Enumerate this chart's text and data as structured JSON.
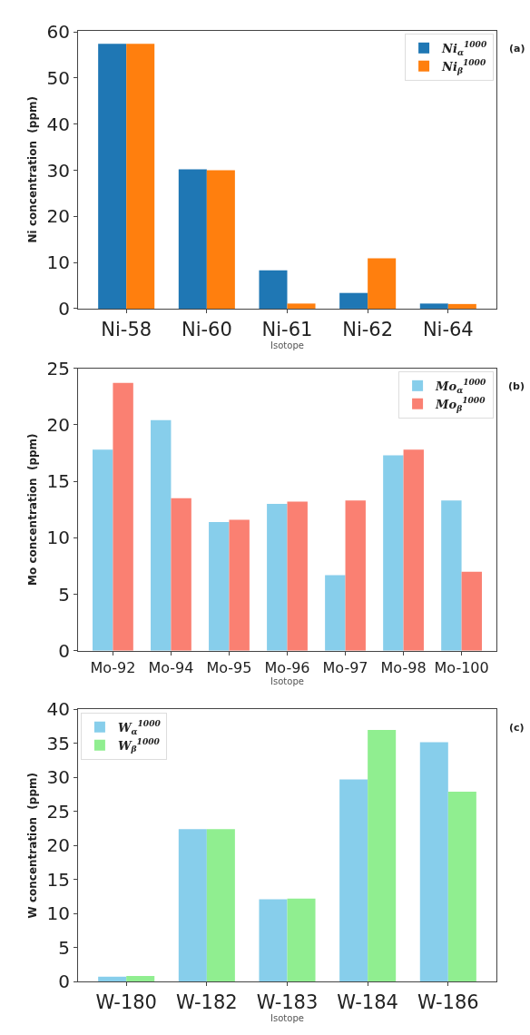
{
  "chart_data": [
    {
      "type": "bar",
      "xlabel": "Isotope",
      "ylabel": "Ni concentration  (ppm)",
      "annotations": [
        "(a)"
      ],
      "categories": [
        "Ni-58",
        "Ni-60",
        "Ni-61",
        "Ni-62",
        "Ni-64"
      ],
      "series": [
        {
          "name": "Ni$_{α}$$^{1000}$",
          "color": "#1f77b4",
          "values": [
            57.4,
            30.2,
            8.3,
            3.4,
            1.1
          ]
        },
        {
          "name": "Ni$_{β}$$^{1000}$",
          "color": "#ff7f0e",
          "values": [
            57.4,
            30.0,
            1.1,
            10.9,
            1.0
          ]
        }
      ],
      "ylim": [
        0,
        60.3
      ],
      "yticks": [
        0,
        10,
        20,
        30,
        40,
        50,
        60
      ],
      "legend": "top right"
    },
    {
      "type": "bar",
      "xlabel": "Isotope",
      "ylabel": "Mo concentration  (ppm)",
      "annotations": [
        "(b)"
      ],
      "categories": [
        "Mo-92",
        "Mo-94",
        "Mo-95",
        "Mo-96",
        "Mo-97",
        "Mo-98",
        "Mo-100"
      ],
      "series": [
        {
          "name": "Mo$_{α}$$^{1000}$",
          "color": "#87ceeb",
          "values": [
            17.8,
            20.4,
            11.4,
            13.0,
            6.7,
            17.3,
            13.3
          ]
        },
        {
          "name": "Mo$_{β}$$^{1000}$",
          "color": "#fa8072",
          "values": [
            23.7,
            13.5,
            11.6,
            13.2,
            13.3,
            17.8,
            7.0
          ]
        }
      ],
      "ylim": [
        0,
        25
      ],
      "yticks": [
        0,
        5,
        10,
        15,
        20,
        25
      ],
      "legend": "top right"
    },
    {
      "type": "bar",
      "xlabel": "Isotope",
      "ylabel": "W concentration  (ppm)",
      "annotations": [
        "(c)"
      ],
      "categories": [
        "W-180",
        "W-182",
        "W-183",
        "W-184",
        "W-186"
      ],
      "series": [
        {
          "name": "W$_{α}$$^{1000}$",
          "color": "#87ceeb",
          "values": [
            0.7,
            22.4,
            12.1,
            29.7,
            35.2
          ]
        },
        {
          "name": "W$_{β}$$^{1000}$",
          "color": "#90ee90",
          "values": [
            0.8,
            22.4,
            12.2,
            37.0,
            27.9
          ]
        }
      ],
      "ylim": [
        0,
        40
      ],
      "yticks": [
        0,
        5,
        10,
        15,
        20,
        25,
        30,
        35,
        40
      ],
      "legend": "top left"
    }
  ]
}
